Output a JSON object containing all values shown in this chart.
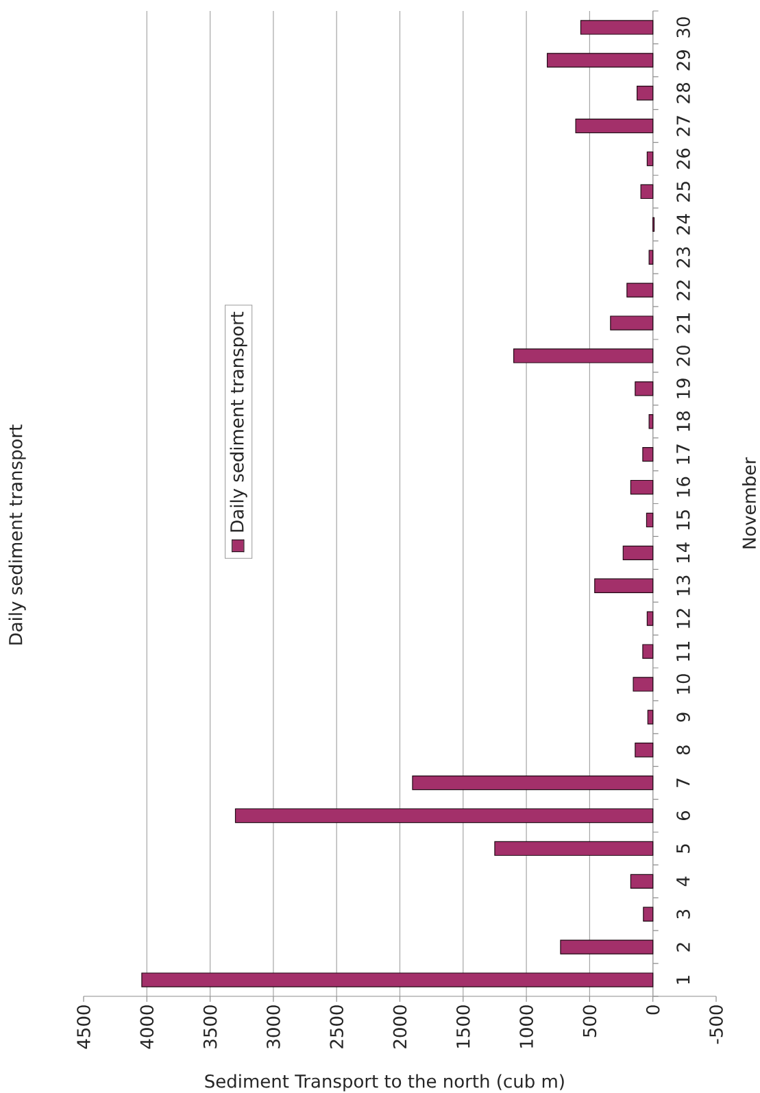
{
  "chart_data": {
    "type": "bar",
    "orientation": "horizontal",
    "title": "Daily sediment transport",
    "xlabel": "Sediment Transport to the north (cub m)",
    "ylabel": "November",
    "categories": [
      "30",
      "29",
      "28",
      "27",
      "26",
      "25",
      "24",
      "23",
      "22",
      "21",
      "20",
      "19",
      "18",
      "17",
      "16",
      "15",
      "14",
      "13",
      "12",
      "11",
      "10",
      "9",
      "8",
      "7",
      "6",
      "5",
      "4",
      "3",
      "2",
      "1"
    ],
    "series": [
      {
        "name": "Daily sediment transport",
        "color": "#a3306a",
        "values": [
          570,
          835,
          125,
          610,
          45,
          95,
          -10,
          30,
          205,
          335,
          1100,
          140,
          30,
          80,
          175,
          50,
          235,
          460,
          45,
          80,
          155,
          40,
          140,
          1900,
          3300,
          1250,
          175,
          75,
          730,
          4040
        ]
      }
    ],
    "xlim": [
      4500,
      -500
    ],
    "xticks": [
      4500,
      4000,
      3500,
      3000,
      2500,
      2000,
      1500,
      1000,
      500,
      0,
      -500
    ],
    "grid": "x",
    "legend": "left"
  }
}
